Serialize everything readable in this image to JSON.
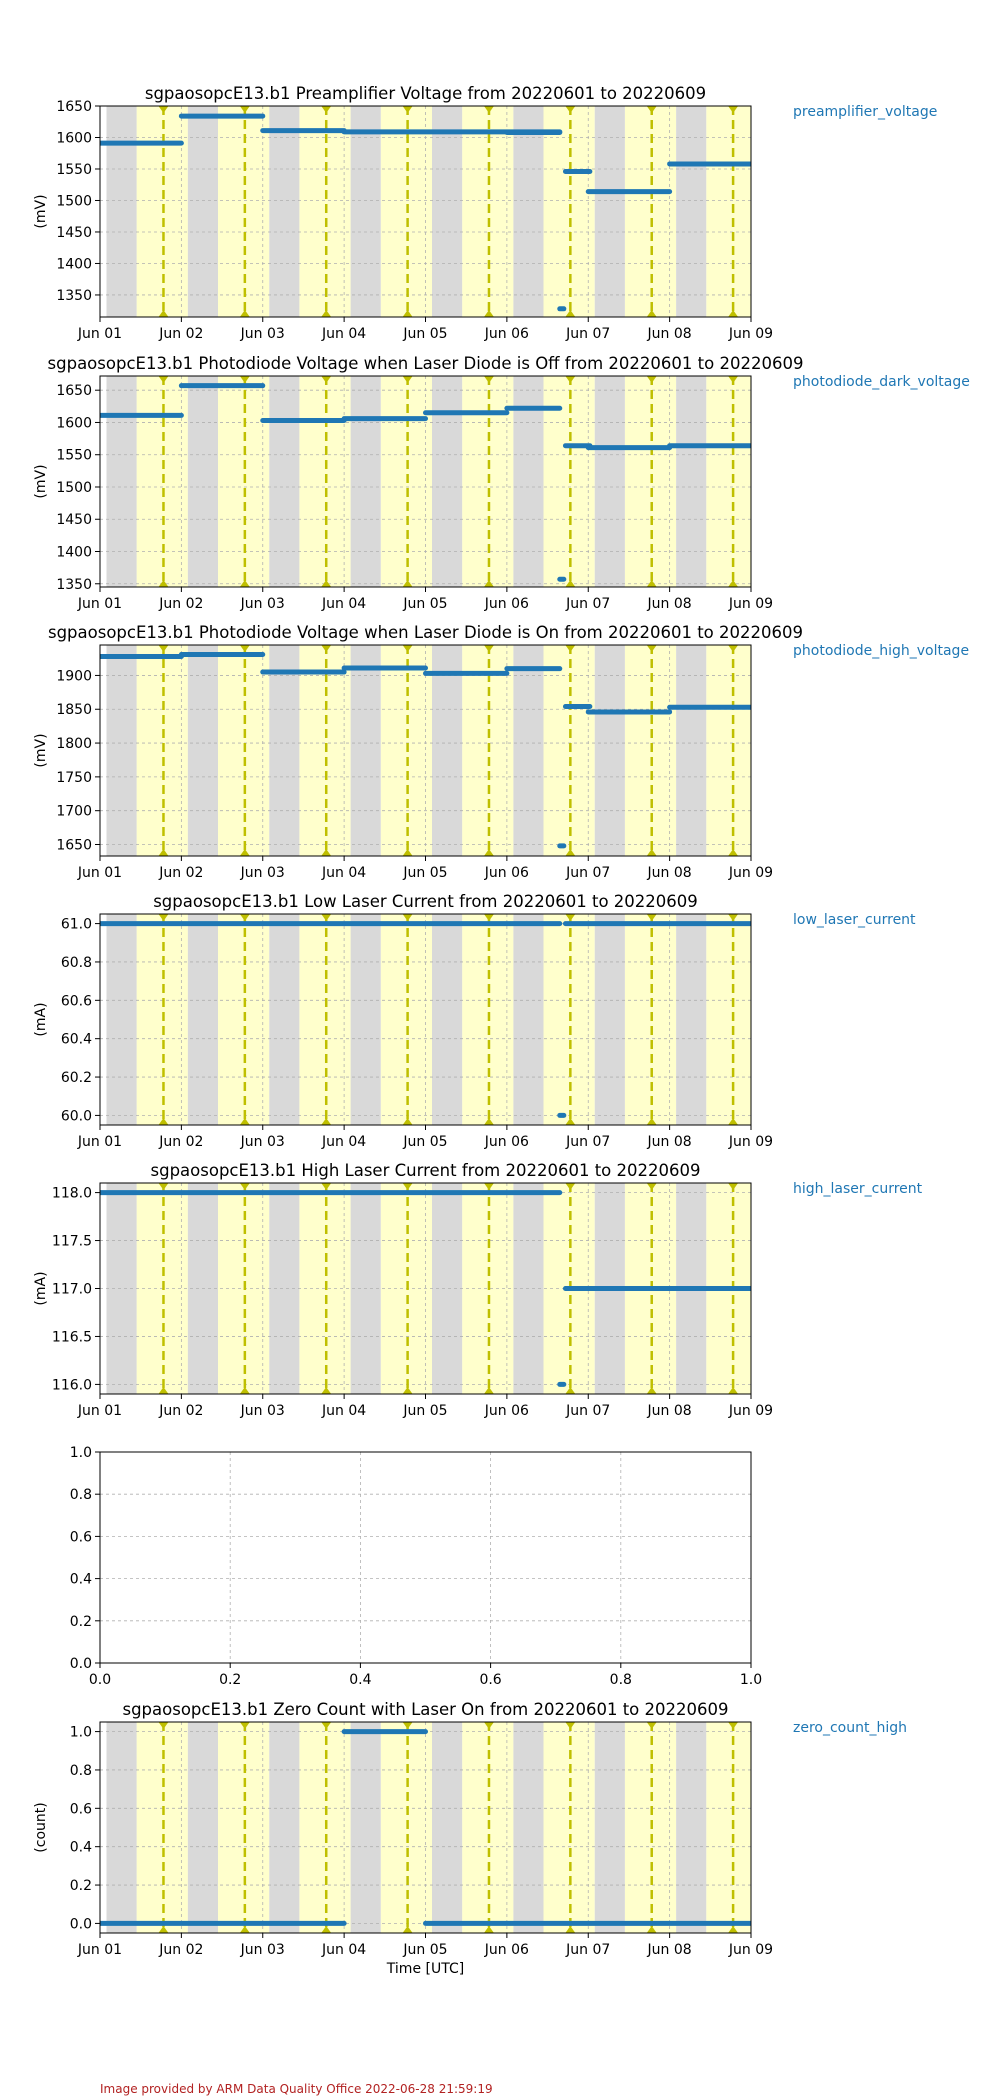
{
  "colors": {
    "series": "#1f77b4",
    "label": "#1f77b4",
    "night_band": "#d9d9d9",
    "day_band": "#ffffcc",
    "marker_line": "#bfbf00",
    "grid": "#b0b0b0",
    "footer": "#b22222"
  },
  "chart_data": [
    {
      "type": "line",
      "title": "sgpaosopcE13.b1 Preamplifier Voltage from 20220601 to 20220609",
      "ylabel": "(mV)",
      "side_label": "preamplifier_voltage",
      "xlim": [
        0,
        8
      ],
      "ylim": [
        1315,
        1650
      ],
      "yticks": [
        1350,
        1400,
        1450,
        1500,
        1550,
        1600,
        1650
      ],
      "xticks": [
        "Jun 01",
        "Jun 02",
        "Jun 03",
        "Jun 04",
        "Jun 05",
        "Jun 06",
        "Jun 07",
        "Jun 08",
        "Jun 09"
      ],
      "segments": [
        {
          "x0": 0.0,
          "x1": 1.0,
          "y": 1591
        },
        {
          "x0": 1.0,
          "x1": 2.0,
          "y": 1634
        },
        {
          "x0": 2.0,
          "x1": 3.0,
          "y": 1611
        },
        {
          "x0": 3.0,
          "x1": 5.65,
          "y": 1609
        },
        {
          "x0": 5.0,
          "x1": 5.65,
          "y": 1608
        },
        {
          "x0": 5.65,
          "x1": 5.7,
          "y": 1328
        },
        {
          "x0": 5.72,
          "x1": 6.02,
          "y": 1546
        },
        {
          "x0": 6.0,
          "x1": 7.0,
          "y": 1514
        },
        {
          "x0": 7.0,
          "x1": 8.0,
          "y": 1558
        }
      ]
    },
    {
      "type": "line",
      "title": "sgpaosopcE13.b1 Photodiode Voltage when Laser Diode is Off from 20220601 to 20220609",
      "ylabel": "(mV)",
      "side_label": "photodiode_dark_voltage",
      "xlim": [
        0,
        8
      ],
      "ylim": [
        1345,
        1672
      ],
      "yticks": [
        1350,
        1400,
        1450,
        1500,
        1550,
        1600,
        1650
      ],
      "xticks": [
        "Jun 01",
        "Jun 02",
        "Jun 03",
        "Jun 04",
        "Jun 05",
        "Jun 06",
        "Jun 07",
        "Jun 08",
        "Jun 09"
      ],
      "segments": [
        {
          "x0": 0.0,
          "x1": 1.0,
          "y": 1611
        },
        {
          "x0": 1.0,
          "x1": 2.0,
          "y": 1657
        },
        {
          "x0": 2.0,
          "x1": 3.0,
          "y": 1603
        },
        {
          "x0": 3.0,
          "x1": 4.0,
          "y": 1606
        },
        {
          "x0": 4.0,
          "x1": 5.0,
          "y": 1615
        },
        {
          "x0": 5.0,
          "x1": 5.65,
          "y": 1622
        },
        {
          "x0": 5.65,
          "x1": 5.7,
          "y": 1357
        },
        {
          "x0": 5.72,
          "x1": 6.02,
          "y": 1564
        },
        {
          "x0": 6.0,
          "x1": 7.0,
          "y": 1561
        },
        {
          "x0": 7.0,
          "x1": 8.0,
          "y": 1564
        }
      ]
    },
    {
      "type": "line",
      "title": "sgpaosopcE13.b1 Photodiode Voltage when Laser Diode is On from 20220601 to 20220609",
      "ylabel": "(mV)",
      "side_label": "photodiode_high_voltage",
      "xlim": [
        0,
        8
      ],
      "ylim": [
        1633,
        1945
      ],
      "yticks": [
        1650,
        1700,
        1750,
        1800,
        1850,
        1900
      ],
      "xticks": [
        "Jun 01",
        "Jun 02",
        "Jun 03",
        "Jun 04",
        "Jun 05",
        "Jun 06",
        "Jun 07",
        "Jun 08",
        "Jun 09"
      ],
      "segments": [
        {
          "x0": 0.0,
          "x1": 1.0,
          "y": 1928
        },
        {
          "x0": 1.0,
          "x1": 2.0,
          "y": 1931
        },
        {
          "x0": 2.0,
          "x1": 3.0,
          "y": 1905
        },
        {
          "x0": 3.0,
          "x1": 4.0,
          "y": 1911
        },
        {
          "x0": 4.0,
          "x1": 5.0,
          "y": 1903
        },
        {
          "x0": 5.0,
          "x1": 5.65,
          "y": 1910
        },
        {
          "x0": 5.65,
          "x1": 5.7,
          "y": 1648
        },
        {
          "x0": 5.72,
          "x1": 6.02,
          "y": 1854
        },
        {
          "x0": 6.0,
          "x1": 7.0,
          "y": 1846
        },
        {
          "x0": 7.0,
          "x1": 8.0,
          "y": 1853
        }
      ]
    },
    {
      "type": "line",
      "title": "sgpaosopcE13.b1 Low Laser Current from 20220601 to 20220609",
      "ylabel": "(mA)",
      "side_label": "low_laser_current",
      "xlim": [
        0,
        8
      ],
      "ylim": [
        59.95,
        61.05
      ],
      "yticks": [
        60.0,
        60.2,
        60.4,
        60.6,
        60.8,
        61.0
      ],
      "ytick_labels": [
        "60.0",
        "60.2",
        "60.4",
        "60.6",
        "60.8",
        "61.0"
      ],
      "xticks": [
        "Jun 01",
        "Jun 02",
        "Jun 03",
        "Jun 04",
        "Jun 05",
        "Jun 06",
        "Jun 07",
        "Jun 08",
        "Jun 09"
      ],
      "segments": [
        {
          "x0": 0.0,
          "x1": 5.65,
          "y": 61.0
        },
        {
          "x0": 5.65,
          "x1": 5.7,
          "y": 60.0
        },
        {
          "x0": 5.72,
          "x1": 8.0,
          "y": 61.0
        }
      ]
    },
    {
      "type": "line",
      "title": "sgpaosopcE13.b1 High Laser Current from 20220601 to 20220609",
      "ylabel": "(mA)",
      "side_label": "high_laser_current",
      "xlim": [
        0,
        8
      ],
      "ylim": [
        115.9,
        118.1
      ],
      "yticks": [
        116.0,
        116.5,
        117.0,
        117.5,
        118.0
      ],
      "ytick_labels": [
        "116.0",
        "116.5",
        "117.0",
        "117.5",
        "118.0"
      ],
      "xticks": [
        "Jun 01",
        "Jun 02",
        "Jun 03",
        "Jun 04",
        "Jun 05",
        "Jun 06",
        "Jun 07",
        "Jun 08",
        "Jun 09"
      ],
      "segments": [
        {
          "x0": 0.0,
          "x1": 5.65,
          "y": 118.0
        },
        {
          "x0": 5.65,
          "x1": 5.7,
          "y": 116.0
        },
        {
          "x0": 5.72,
          "x1": 8.0,
          "y": 117.0
        }
      ]
    },
    {
      "type": "line",
      "title": "",
      "ylabel": "",
      "side_label": "",
      "empty": true,
      "xlim": [
        0,
        1
      ],
      "ylim": [
        0,
        1
      ],
      "yticks": [
        0.0,
        0.2,
        0.4,
        0.6,
        0.8,
        1.0
      ],
      "ytick_labels": [
        "0.0",
        "0.2",
        "0.4",
        "0.6",
        "0.8",
        "1.0"
      ],
      "xticks": [
        "0.0",
        "0.2",
        "0.4",
        "0.6",
        "0.8",
        "1.0"
      ],
      "segments": []
    },
    {
      "type": "line",
      "title": "sgpaosopcE13.b1 Zero Count with Laser On from 20220601 to 20220609",
      "ylabel": "(count)",
      "side_label": "zero_count_high",
      "xlabel": "Time [UTC]",
      "xlim": [
        0,
        8
      ],
      "ylim": [
        -0.05,
        1.05
      ],
      "yticks": [
        0.0,
        0.2,
        0.4,
        0.6,
        0.8,
        1.0
      ],
      "ytick_labels": [
        "0.0",
        "0.2",
        "0.4",
        "0.6",
        "0.8",
        "1.0"
      ],
      "xticks": [
        "Jun 01",
        "Jun 02",
        "Jun 03",
        "Jun 04",
        "Jun 05",
        "Jun 06",
        "Jun 07",
        "Jun 08",
        "Jun 09"
      ],
      "segments": [
        {
          "x0": 0.0,
          "x1": 3.0,
          "y": 0.0
        },
        {
          "x0": 3.0,
          "x1": 4.0,
          "y": 1.0
        },
        {
          "x0": 4.0,
          "x1": 8.0,
          "y": 0.0
        }
      ]
    }
  ],
  "day_shading": {
    "night_spans": [
      [
        0.08,
        0.45
      ],
      [
        1.08,
        1.45
      ],
      [
        2.08,
        2.45
      ],
      [
        3.08,
        3.45
      ],
      [
        4.08,
        4.45
      ],
      [
        5.08,
        5.45
      ],
      [
        6.08,
        6.45
      ],
      [
        7.08,
        7.45
      ]
    ],
    "day_spans": [
      [
        0.45,
        1.08
      ],
      [
        1.45,
        2.08
      ],
      [
        2.45,
        3.08
      ],
      [
        3.45,
        4.08
      ],
      [
        4.45,
        5.08
      ],
      [
        5.45,
        6.08
      ],
      [
        6.45,
        7.08
      ],
      [
        7.45,
        8.0
      ]
    ],
    "marker_days": [
      0.78,
      1.78,
      2.78,
      3.78,
      4.78,
      5.78,
      6.78,
      7.78
    ]
  },
  "footer": "Image provided by ARM Data Quality Office 2022-06-28 21:59:19"
}
